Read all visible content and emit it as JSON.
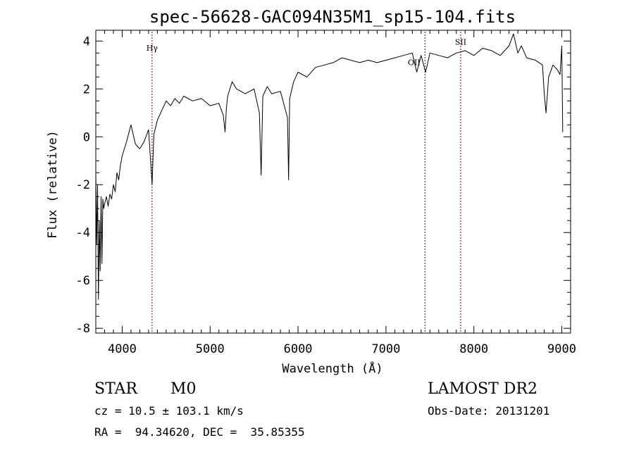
{
  "chart_data": {
    "type": "line",
    "title": "spec-56628-GAC094N35M1_sp15-104.fits",
    "xlabel": "Wavelength (Å)",
    "ylabel": "Flux (relative)",
    "xlim": [
      3700,
      9100
    ],
    "ylim": [
      -8.2,
      4.45
    ],
    "x_ticks": [
      4000,
      5000,
      6000,
      7000,
      8000,
      9000
    ],
    "y_ticks": [
      -8,
      -6,
      -4,
      -2,
      0,
      2,
      4
    ],
    "grid": false,
    "series": [
      {
        "color": "#000000",
        "x": [
          3700,
          3710,
          3720,
          3730,
          3740,
          3750,
          3760,
          3770,
          3780,
          3790,
          3800,
          3820,
          3840,
          3860,
          3880,
          3900,
          3920,
          3940,
          3960,
          3980,
          4000,
          4050,
          4100,
          4150,
          4200,
          4250,
          4300,
          4340,
          4360,
          4380,
          4400,
          4450,
          4500,
          4550,
          4600,
          4650,
          4700,
          4800,
          4900,
          5000,
          5100,
          5150,
          5170,
          5185,
          5200,
          5250,
          5300,
          5400,
          5500,
          5560,
          5580,
          5600,
          5650,
          5700,
          5800,
          5880,
          5893,
          5905,
          5950,
          6000,
          6100,
          6200,
          6300,
          6400,
          6500,
          6600,
          6700,
          6800,
          6900,
          7000,
          7100,
          7200,
          7300,
          7350,
          7400,
          7450,
          7500,
          7600,
          7700,
          7800,
          7900,
          8000,
          8100,
          8200,
          8300,
          8400,
          8450,
          8500,
          8540,
          8600,
          8700,
          8780,
          8800,
          8820,
          8850,
          8900,
          8950,
          8980,
          9000,
          9010
        ],
        "values": [
          -1.5,
          -4.5,
          -2.0,
          -6.8,
          -3.5,
          -5.6,
          -2.5,
          -5.3,
          -2.6,
          -3.0,
          -2.8,
          -2.5,
          -2.9,
          -2.4,
          -2.6,
          -2.0,
          -2.3,
          -1.5,
          -1.8,
          -1.2,
          -0.8,
          -0.2,
          0.5,
          -0.3,
          -0.5,
          -0.2,
          0.3,
          -2.0,
          0.1,
          0.4,
          0.7,
          1.1,
          1.5,
          1.3,
          1.6,
          1.4,
          1.7,
          1.5,
          1.6,
          1.3,
          1.4,
          0.9,
          0.2,
          1.2,
          1.7,
          2.3,
          2.0,
          1.8,
          2.0,
          1.0,
          -1.6,
          1.7,
          2.1,
          1.8,
          1.9,
          0.8,
          -1.8,
          1.6,
          2.3,
          2.7,
          2.5,
          2.9,
          3.0,
          3.1,
          3.3,
          3.2,
          3.1,
          3.2,
          3.1,
          3.2,
          3.3,
          3.4,
          3.5,
          2.7,
          3.4,
          2.7,
          3.5,
          3.4,
          3.3,
          3.5,
          3.6,
          3.4,
          3.7,
          3.6,
          3.4,
          3.8,
          4.3,
          3.5,
          3.8,
          3.3,
          3.2,
          3.0,
          1.8,
          1.0,
          2.5,
          3.0,
          2.8,
          2.6,
          3.8,
          0.2
        ]
      }
    ],
    "annotations": [
      {
        "label": "Hγ",
        "x": 4340,
        "label_y": 3.6,
        "color": "#7a0000"
      },
      {
        "label": "OII",
        "x": 7320,
        "line_x": 7444,
        "label_y": 3.0,
        "color": "#7a0000"
      },
      {
        "label": "SII",
        "x": 7850,
        "label_y": 3.85,
        "color": "#7a0000"
      }
    ]
  },
  "info": {
    "class_label": "STAR",
    "subclass_label": "M0",
    "survey_label": "LAMOST DR2",
    "cz_text": "cz = 10.5 ± 103.1 km/s",
    "obs_date_text": "Obs-Date: 20131201",
    "radec_text": "RA =  94.34620, DEC =  35.85355"
  }
}
